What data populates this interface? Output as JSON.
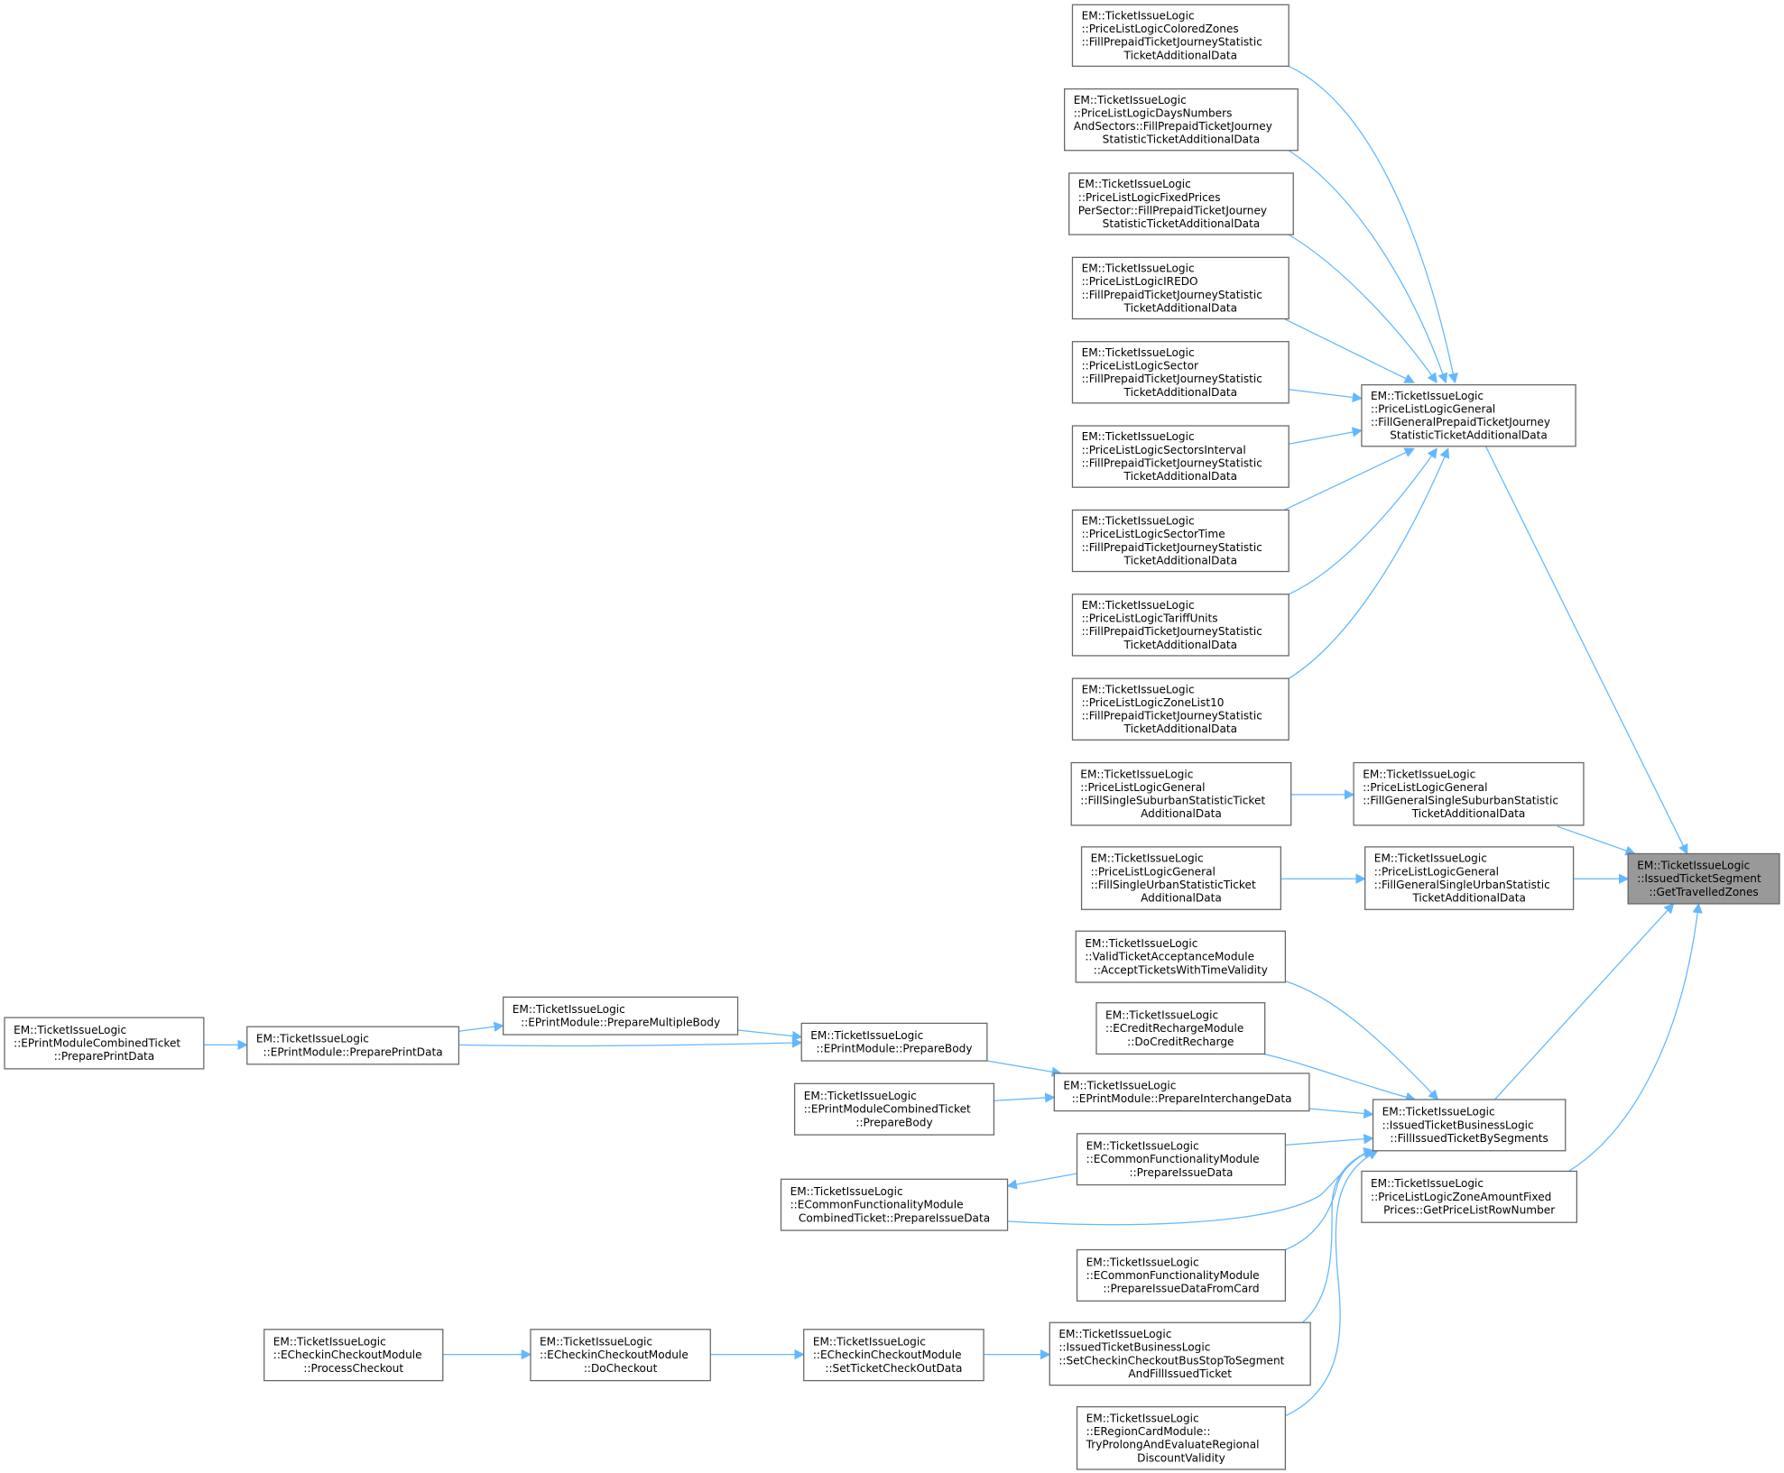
{
  "graph": {
    "edge_color": "#63b8ff",
    "node_border_color": "#666666",
    "focus_fill_color": "#999999",
    "nodes": [
      {
        "id": "n0",
        "focus": true,
        "lines": [
          "EM::TicketIssueLogic",
          "::IssuedTicketSegment",
          "::GetTravelledZones"
        ]
      },
      {
        "id": "n1",
        "lines": [
          "EM::TicketIssueLogic",
          "::PriceListLogicGeneral",
          "::FillGeneralPrepaidTicketJourney",
          "StatisticTicketAdditionalData"
        ]
      },
      {
        "id": "n2",
        "lines": [
          "EM::TicketIssueLogic",
          "::PriceListLogicColoredZones",
          "::FillPrepaidTicketJourneyStatistic",
          "TicketAdditionalData"
        ]
      },
      {
        "id": "n3",
        "lines": [
          "EM::TicketIssueLogic",
          "::PriceListLogicDaysNumbers",
          "AndSectors::FillPrepaidTicketJourney",
          "StatisticTicketAdditionalData"
        ]
      },
      {
        "id": "n4",
        "lines": [
          "EM::TicketIssueLogic",
          "::PriceListLogicFixedPrices",
          "PerSector::FillPrepaidTicketJourney",
          "StatisticTicketAdditionalData"
        ]
      },
      {
        "id": "n5",
        "lines": [
          "EM::TicketIssueLogic",
          "::PriceListLogicIREDO",
          "::FillPrepaidTicketJourneyStatistic",
          "TicketAdditionalData"
        ]
      },
      {
        "id": "n6",
        "lines": [
          "EM::TicketIssueLogic",
          "::PriceListLogicSector",
          "::FillPrepaidTicketJourneyStatistic",
          "TicketAdditionalData"
        ]
      },
      {
        "id": "n7",
        "lines": [
          "EM::TicketIssueLogic",
          "::PriceListLogicSectorsInterval",
          "::FillPrepaidTicketJourneyStatistic",
          "TicketAdditionalData"
        ]
      },
      {
        "id": "n8",
        "lines": [
          "EM::TicketIssueLogic",
          "::PriceListLogicSectorTime",
          "::FillPrepaidTicketJourneyStatistic",
          "TicketAdditionalData"
        ]
      },
      {
        "id": "n9",
        "lines": [
          "EM::TicketIssueLogic",
          "::PriceListLogicTariffUnits",
          "::FillPrepaidTicketJourneyStatistic",
          "TicketAdditionalData"
        ]
      },
      {
        "id": "n10",
        "lines": [
          "EM::TicketIssueLogic",
          "::PriceListLogicZoneList10",
          "::FillPrepaidTicketJourneyStatistic",
          "TicketAdditionalData"
        ]
      },
      {
        "id": "n11",
        "lines": [
          "EM::TicketIssueLogic",
          "::PriceListLogicGeneral",
          "::FillSingleSuburbanStatisticTicket",
          "AdditionalData"
        ]
      },
      {
        "id": "n12",
        "lines": [
          "EM::TicketIssueLogic",
          "::PriceListLogicGeneral",
          "::FillGeneralSingleSuburbanStatistic",
          "TicketAdditionalData"
        ]
      },
      {
        "id": "n13",
        "lines": [
          "EM::TicketIssueLogic",
          "::PriceListLogicGeneral",
          "::FillSingleUrbanStatisticTicket",
          "AdditionalData"
        ]
      },
      {
        "id": "n14",
        "lines": [
          "EM::TicketIssueLogic",
          "::PriceListLogicGeneral",
          "::FillGeneralSingleUrbanStatistic",
          "TicketAdditionalData"
        ]
      },
      {
        "id": "n15",
        "lines": [
          "EM::TicketIssueLogic",
          "::ValidTicketAcceptanceModule",
          "::AcceptTicketsWithTimeValidity"
        ]
      },
      {
        "id": "n16",
        "lines": [
          "EM::TicketIssueLogic",
          "::ECreditRechargeModule",
          "::DoCreditRecharge"
        ]
      },
      {
        "id": "n17",
        "lines": [
          "EM::TicketIssueLogic",
          "::IssuedTicketBusinessLogic",
          "::FillIssuedTicketBySegments"
        ]
      },
      {
        "id": "n18",
        "lines": [
          "EM::TicketIssueLogic",
          "::PriceListLogicZoneAmountFixed",
          "Prices::GetPriceListRowNumber"
        ]
      },
      {
        "id": "n19",
        "lines": [
          "EM::TicketIssueLogic",
          "::EPrintModule::PrepareInterchangeData"
        ]
      },
      {
        "id": "n20",
        "lines": [
          "EM::TicketIssueLogic",
          "::ECommonFunctionalityModule",
          "::PrepareIssueData"
        ]
      },
      {
        "id": "n21",
        "lines": [
          "EM::TicketIssueLogic",
          "::ECommonFunctionalityModule",
          "::PrepareIssueDataFromCard"
        ]
      },
      {
        "id": "n22",
        "lines": [
          "EM::TicketIssueLogic",
          "::IssuedTicketBusinessLogic",
          "::SetCheckinCheckoutBusStopToSegment",
          "AndFillIssuedTicket"
        ]
      },
      {
        "id": "n23",
        "lines": [
          "EM::TicketIssueLogic",
          "::ERegionCardModule::",
          "TryProlongAndEvaluateRegional",
          "DiscountValidity"
        ]
      },
      {
        "id": "n24",
        "lines": [
          "EM::TicketIssueLogic",
          "::EPrintModule::PrepareBody"
        ]
      },
      {
        "id": "n25",
        "lines": [
          "EM::TicketIssueLogic",
          "::EPrintModuleCombinedTicket",
          "::PrepareBody"
        ]
      },
      {
        "id": "n26",
        "lines": [
          "EM::TicketIssueLogic",
          "::ECommonFunctionalityModule",
          "CombinedTicket::PrepareIssueData"
        ]
      },
      {
        "id": "n27",
        "lines": [
          "EM::TicketIssueLogic",
          "::EPrintModule::PrepareMultipleBody"
        ]
      },
      {
        "id": "n28",
        "lines": [
          "EM::TicketIssueLogic",
          "::EPrintModule::PreparePrintData"
        ]
      },
      {
        "id": "n29",
        "lines": [
          "EM::TicketIssueLogic",
          "::EPrintModuleCombinedTicket",
          "::PreparePrintData"
        ]
      },
      {
        "id": "n30",
        "lines": [
          "EM::TicketIssueLogic",
          "::ECheckinCheckoutModule",
          "::SetTicketCheckOutData"
        ]
      },
      {
        "id": "n31",
        "lines": [
          "EM::TicketIssueLogic",
          "::ECheckinCheckoutModule",
          "::DoCheckout"
        ]
      },
      {
        "id": "n32",
        "lines": [
          "EM::TicketIssueLogic",
          "::ECheckinCheckoutModule",
          "::ProcessCheckout"
        ]
      }
    ],
    "edges": [
      {
        "from": "n2",
        "to": "n1"
      },
      {
        "from": "n3",
        "to": "n1"
      },
      {
        "from": "n4",
        "to": "n1"
      },
      {
        "from": "n5",
        "to": "n1"
      },
      {
        "from": "n6",
        "to": "n1"
      },
      {
        "from": "n7",
        "to": "n1"
      },
      {
        "from": "n8",
        "to": "n1"
      },
      {
        "from": "n9",
        "to": "n1"
      },
      {
        "from": "n10",
        "to": "n1"
      },
      {
        "from": "n1",
        "to": "n0"
      },
      {
        "from": "n11",
        "to": "n12"
      },
      {
        "from": "n12",
        "to": "n0"
      },
      {
        "from": "n13",
        "to": "n14"
      },
      {
        "from": "n14",
        "to": "n0"
      },
      {
        "from": "n17",
        "to": "n0"
      },
      {
        "from": "n18",
        "to": "n0"
      },
      {
        "from": "n15",
        "to": "n17"
      },
      {
        "from": "n16",
        "to": "n17"
      },
      {
        "from": "n19",
        "to": "n17"
      },
      {
        "from": "n20",
        "to": "n17"
      },
      {
        "from": "n26",
        "to": "n17"
      },
      {
        "from": "n21",
        "to": "n17"
      },
      {
        "from": "n22",
        "to": "n17"
      },
      {
        "from": "n23",
        "to": "n17"
      },
      {
        "from": "n24",
        "to": "n19"
      },
      {
        "from": "n25",
        "to": "n19"
      },
      {
        "from": "n20",
        "to": "n26"
      },
      {
        "from": "n27",
        "to": "n24"
      },
      {
        "from": "n28",
        "to": "n27"
      },
      {
        "from": "n28",
        "to": "n24"
      },
      {
        "from": "n29",
        "to": "n28"
      },
      {
        "from": "n30",
        "to": "n22"
      },
      {
        "from": "n31",
        "to": "n30"
      },
      {
        "from": "n32",
        "to": "n31"
      }
    ]
  }
}
